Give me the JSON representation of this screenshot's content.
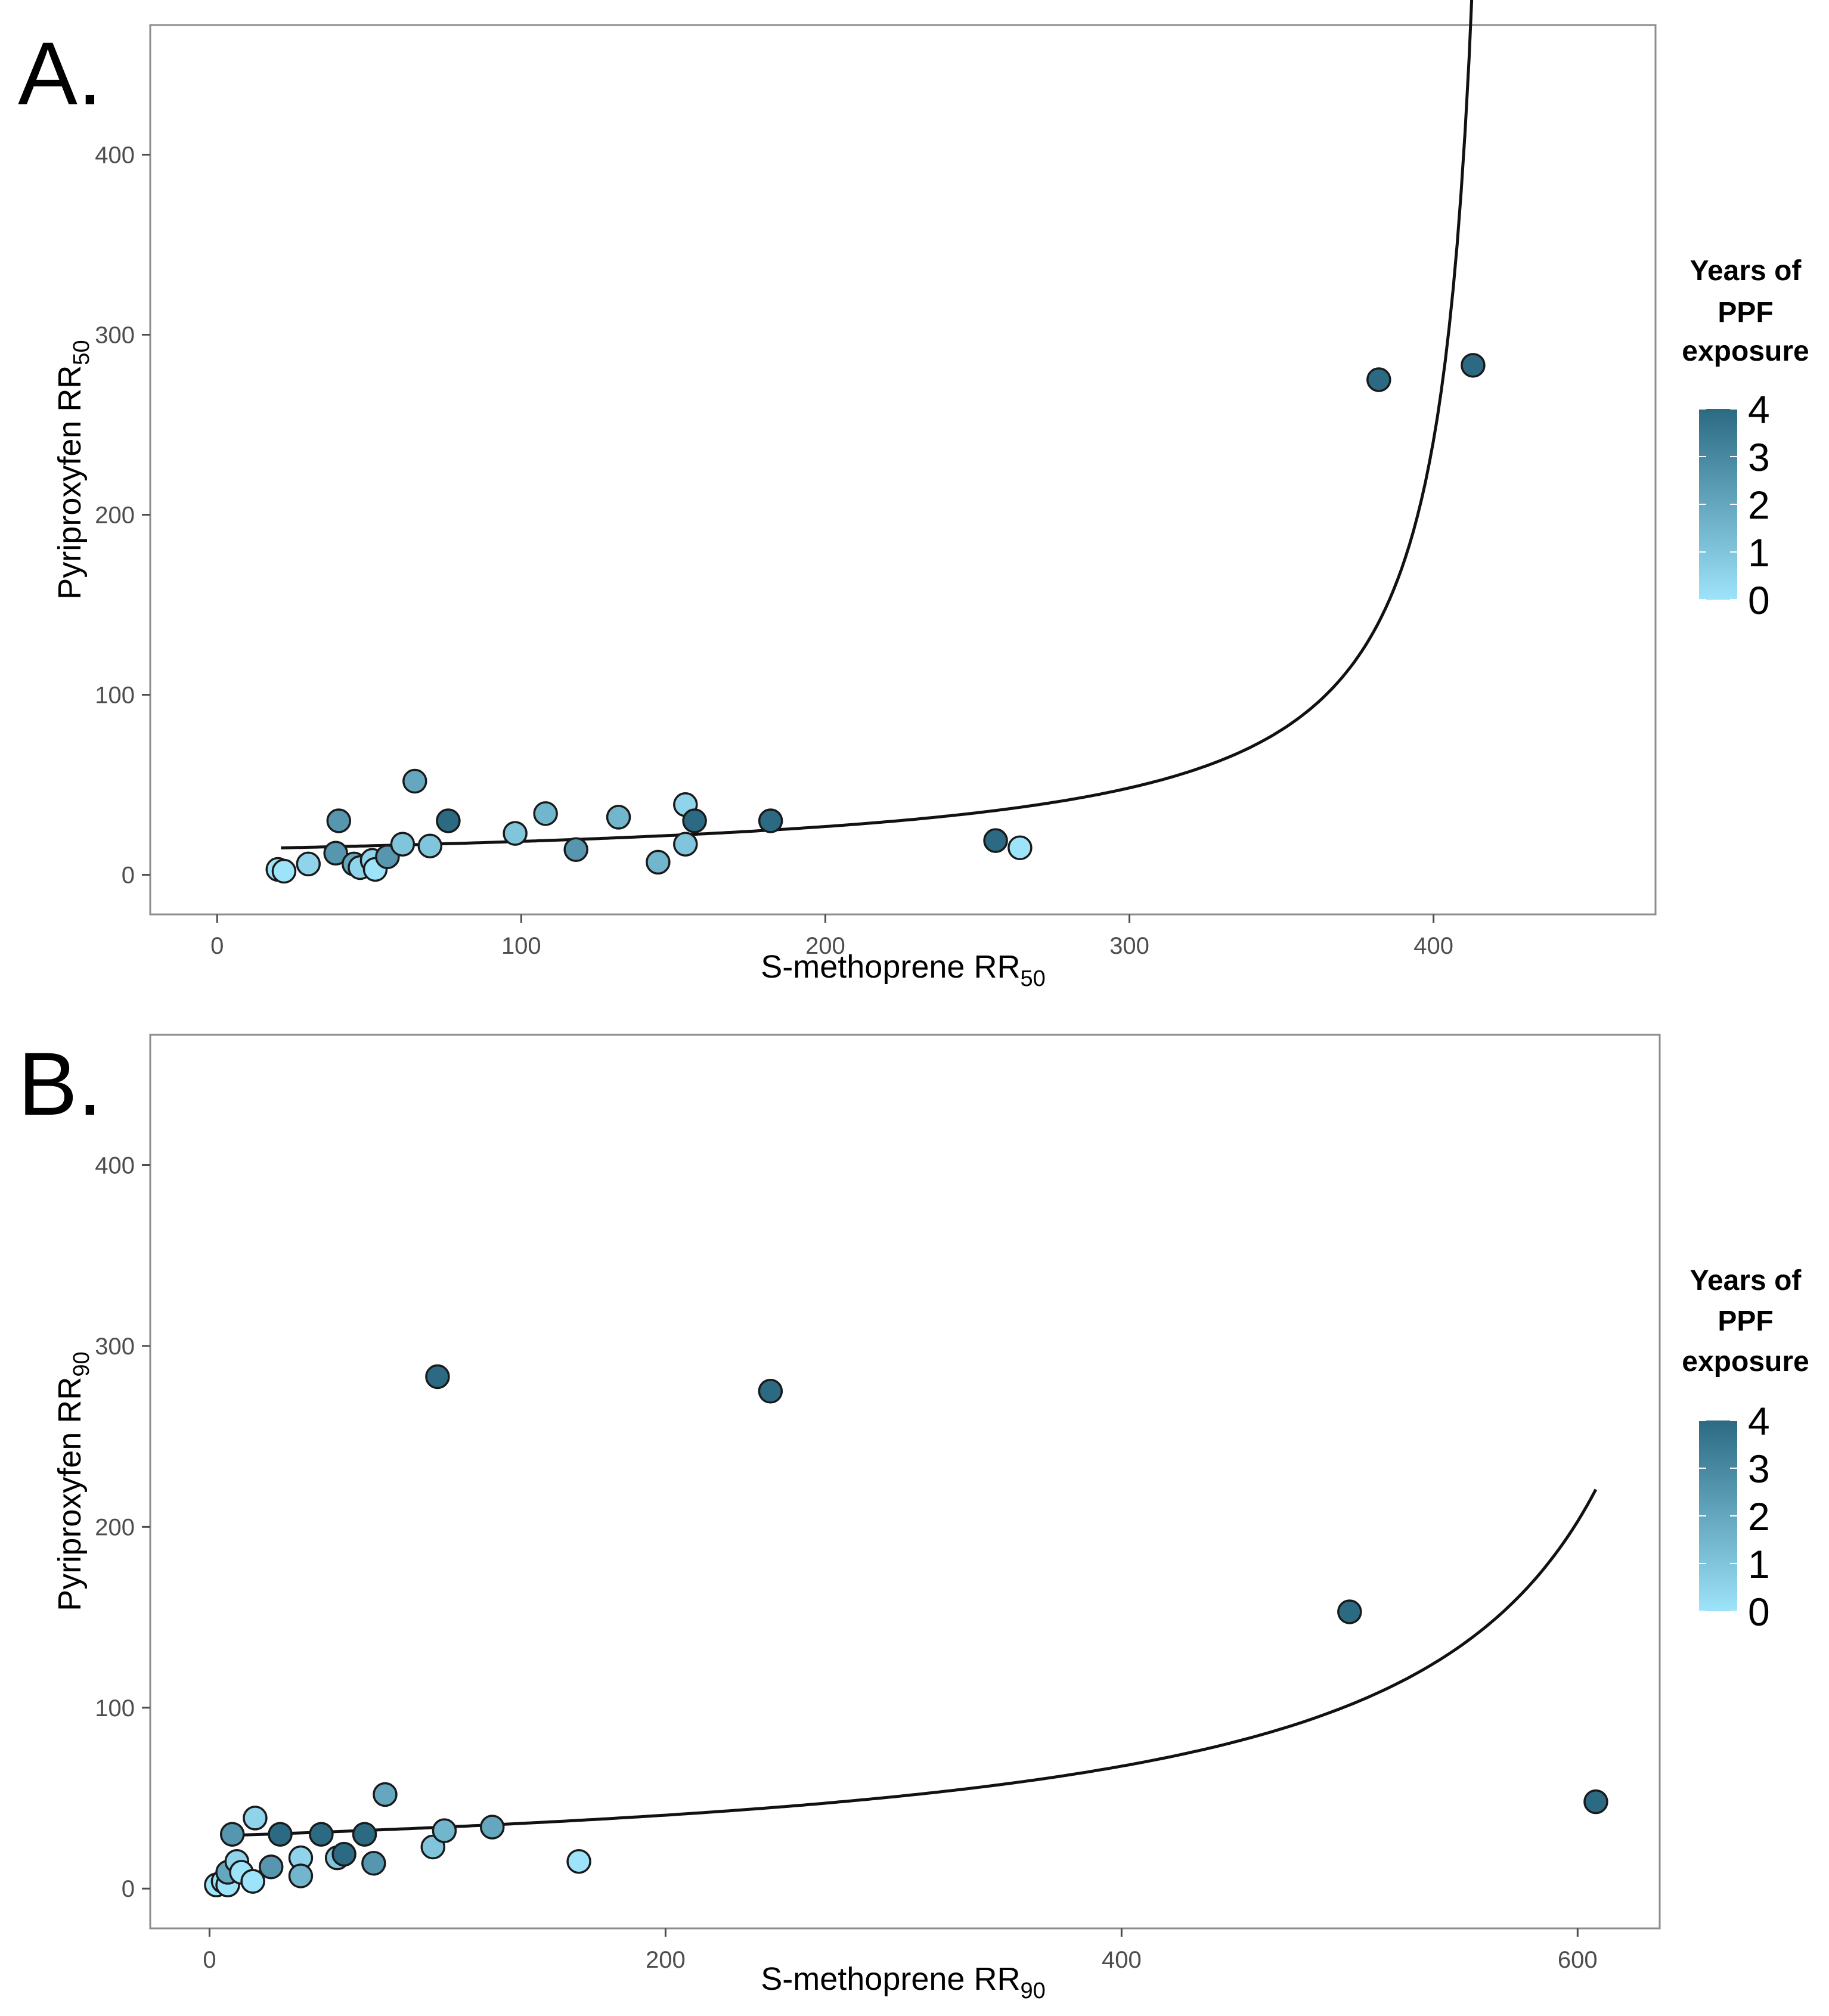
{
  "colors": {
    "low": "#9de3fa",
    "high": "#2b6a82",
    "point_stroke": "#1a1a1a",
    "curve": "#111111",
    "panel_border": "#8c8c8c",
    "tick": "#4d4d4d"
  },
  "chart_data": [
    {
      "id": "A",
      "type": "scatter",
      "panel_label": "A.",
      "xlabel": {
        "main": "S-methoprene RR",
        "sub": "50"
      },
      "ylabel": {
        "main": "Pyriproxyfen RR",
        "sub": "50"
      },
      "xlim": [
        -22,
        473
      ],
      "ylim": [
        -22,
        472
      ],
      "xticks": [
        0,
        100,
        200,
        300,
        400
      ],
      "yticks": [
        0,
        100,
        200,
        300,
        400
      ],
      "legend": {
        "title": [
          "Years of",
          "PPF",
          "exposure"
        ],
        "ticks": [
          0,
          1,
          2,
          3,
          4
        ],
        "range": [
          0,
          4
        ],
        "placement": "right"
      },
      "points": [
        {
          "x": 20,
          "y": 3,
          "c": 0
        },
        {
          "x": 22,
          "y": 2,
          "c": 0
        },
        {
          "x": 30,
          "y": 6,
          "c": 0.5
        },
        {
          "x": 39,
          "y": 12,
          "c": 2.5
        },
        {
          "x": 40,
          "y": 30,
          "c": 2.5
        },
        {
          "x": 45,
          "y": 6,
          "c": 2
        },
        {
          "x": 47,
          "y": 4,
          "c": 0.5
        },
        {
          "x": 51,
          "y": 8,
          "c": 0.5
        },
        {
          "x": 52,
          "y": 3,
          "c": 0
        },
        {
          "x": 56,
          "y": 10,
          "c": 2.5
        },
        {
          "x": 61,
          "y": 17,
          "c": 1
        },
        {
          "x": 65,
          "y": 52,
          "c": 2
        },
        {
          "x": 70,
          "y": 16,
          "c": 1
        },
        {
          "x": 76,
          "y": 30,
          "c": 4
        },
        {
          "x": 98,
          "y": 23,
          "c": 1
        },
        {
          "x": 108,
          "y": 34,
          "c": 1.5
        },
        {
          "x": 118,
          "y": 14,
          "c": 2.5
        },
        {
          "x": 132,
          "y": 32,
          "c": 1.5
        },
        {
          "x": 145,
          "y": 7,
          "c": 1.5
        },
        {
          "x": 154,
          "y": 39,
          "c": 0.5
        },
        {
          "x": 154,
          "y": 17,
          "c": 1
        },
        {
          "x": 157,
          "y": 30,
          "c": 4
        },
        {
          "x": 182,
          "y": 30,
          "c": 4
        },
        {
          "x": 256,
          "y": 19,
          "c": 4
        },
        {
          "x": 264,
          "y": 15,
          "c": 0
        },
        {
          "x": 382,
          "y": 275,
          "c": 4
        },
        {
          "x": 413,
          "y": 283,
          "c": 4
        }
      ],
      "curve": {
        "a": 14.2,
        "xmax": 425,
        "x_start": 21,
        "x_end": 413
      }
    },
    {
      "id": "B",
      "type": "scatter",
      "panel_label": "B.",
      "xlabel": {
        "main": "S-methoprene RR",
        "sub": "90"
      },
      "ylabel": {
        "main": "Pyriproxyfen RR",
        "sub": "90"
      },
      "xlim": [
        -26,
        636
      ],
      "ylim": [
        -22,
        472
      ],
      "xticks": [
        0,
        200,
        400,
        600
      ],
      "yticks": [
        0,
        100,
        200,
        300,
        400
      ],
      "legend": {
        "title": [
          "Years of",
          "PPF",
          "exposure"
        ],
        "ticks": [
          0,
          1,
          2,
          3,
          4
        ],
        "range": [
          0,
          4
        ],
        "placement": "right"
      },
      "points": [
        {
          "x": 3,
          "y": 2,
          "c": 0
        },
        {
          "x": 6,
          "y": 4,
          "c": 0
        },
        {
          "x": 8,
          "y": 2,
          "c": 0
        },
        {
          "x": 8,
          "y": 9,
          "c": 2
        },
        {
          "x": 10,
          "y": 30,
          "c": 2.5
        },
        {
          "x": 12,
          "y": 15,
          "c": 0.5
        },
        {
          "x": 14,
          "y": 9,
          "c": 0
        },
        {
          "x": 19,
          "y": 4,
          "c": 0
        },
        {
          "x": 20,
          "y": 39,
          "c": 0.5
        },
        {
          "x": 27,
          "y": 12,
          "c": 2.5
        },
        {
          "x": 31,
          "y": 30,
          "c": 4
        },
        {
          "x": 40,
          "y": 17,
          "c": 0.5
        },
        {
          "x": 40,
          "y": 7,
          "c": 1.5
        },
        {
          "x": 49,
          "y": 30,
          "c": 4
        },
        {
          "x": 56,
          "y": 17,
          "c": 1
        },
        {
          "x": 59,
          "y": 19,
          "c": 4
        },
        {
          "x": 68,
          "y": 30,
          "c": 4
        },
        {
          "x": 72,
          "y": 14,
          "c": 2.5
        },
        {
          "x": 77,
          "y": 52,
          "c": 2
        },
        {
          "x": 98,
          "y": 23,
          "c": 1
        },
        {
          "x": 103,
          "y": 32,
          "c": 1.5
        },
        {
          "x": 124,
          "y": 34,
          "c": 2
        },
        {
          "x": 162,
          "y": 15,
          "c": 0
        },
        {
          "x": 100,
          "y": 283,
          "c": 4
        },
        {
          "x": 246,
          "y": 275,
          "c": 4
        },
        {
          "x": 500,
          "y": 153,
          "c": 4
        },
        {
          "x": 608,
          "y": 48,
          "c": 4
        }
      ],
      "curve": {
        "a": 29,
        "xmax": 700,
        "x_start": 5,
        "x_end": 608
      }
    }
  ]
}
